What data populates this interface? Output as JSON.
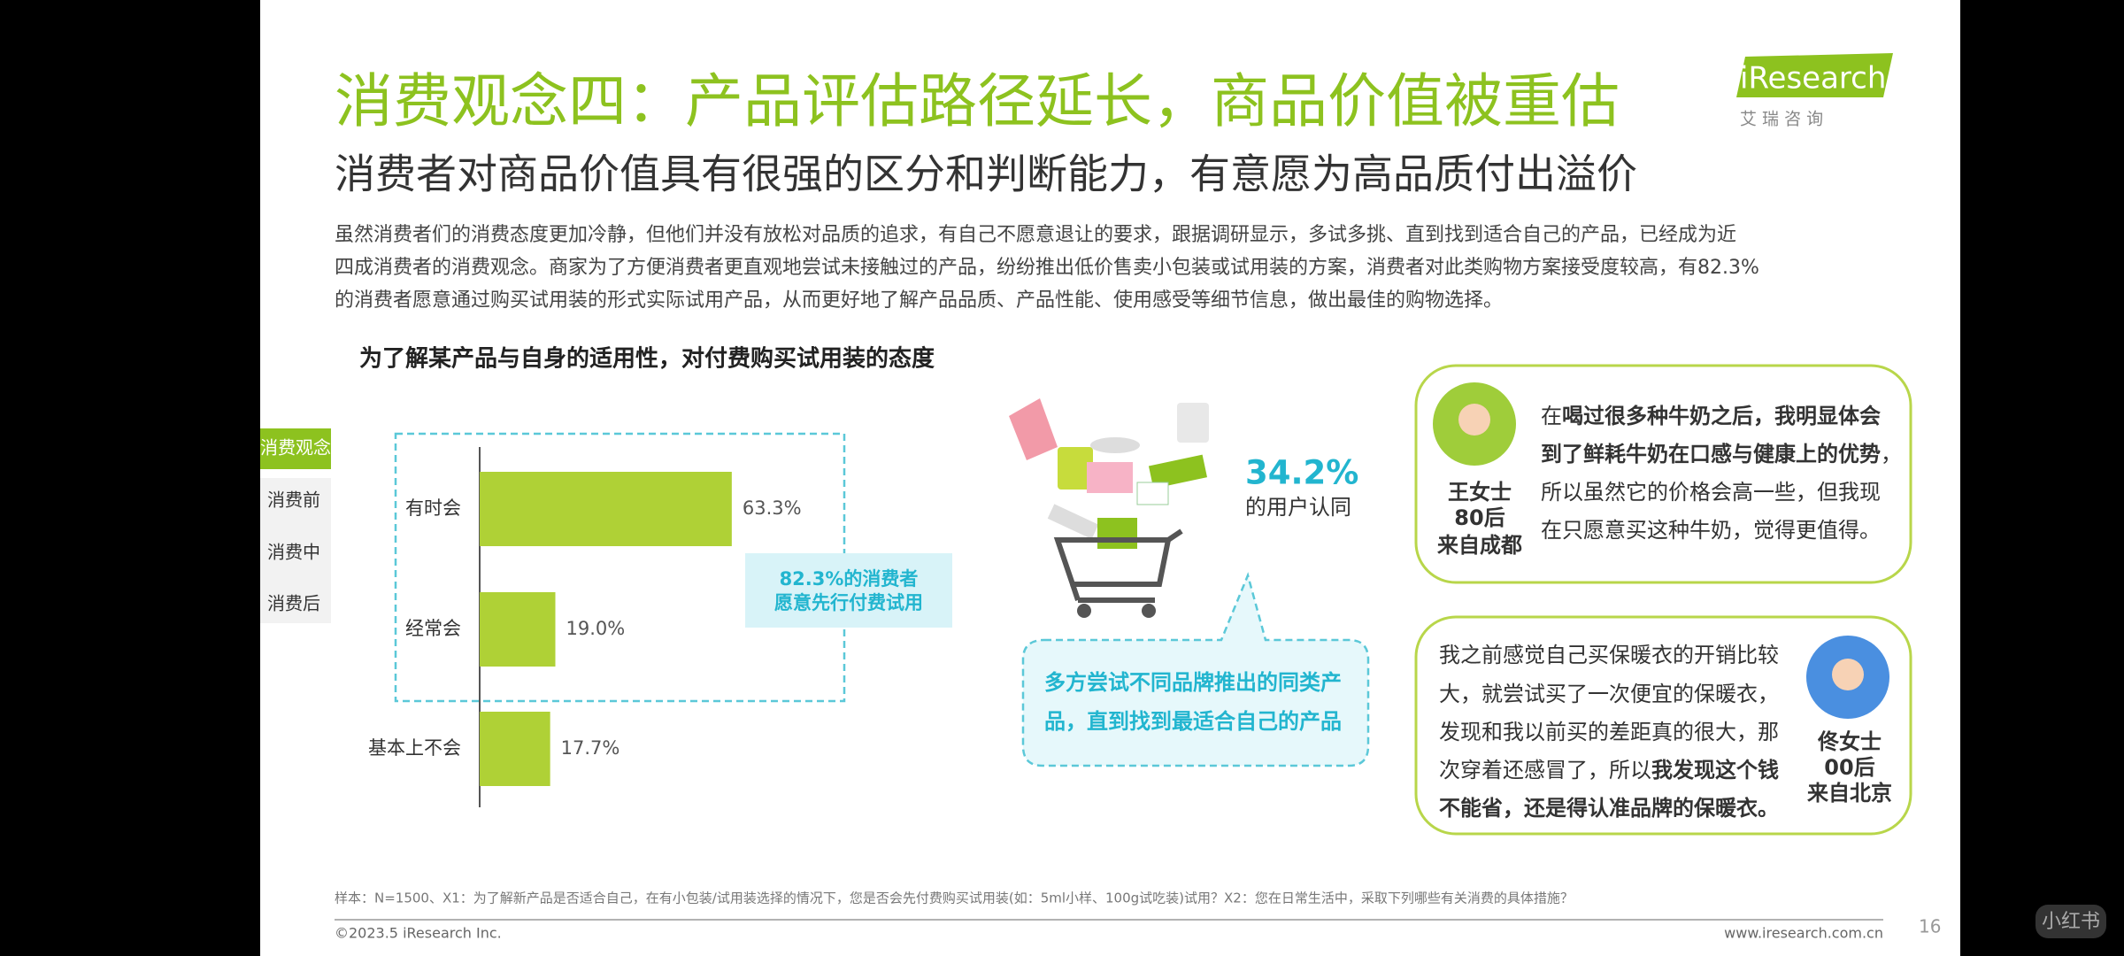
{
  "header": {
    "title": "消费观念四：产品评估路径延长，商品价值被重估",
    "subtitle": "消费者对商品价值具有很强的区分和判断能力，有意愿为高品质付出溢价",
    "logo": "iResearch",
    "logo_sub": "艾 瑞 咨 询"
  },
  "body": [
    "虽然消费者们的消费态度更加冷静，但他们并没有放松对品质的追求，有自己不愿意退让的要求，跟据调研显示，多试多挑、直到找到适合自己的产品，已经成为近",
    "四成消费者的消费观念。商家为了方便消费者更直观地尝试未接触过的产品，纷纷推出低价售卖小包装或试用装的方案，消费者对此类购物方案接受度较高，有82.3%",
    "的消费者愿意通过购买试用装的形式实际试用产品，从而更好地了解产品品质、产品性能、使用感受等细节信息，做出最佳的购物选择。"
  ],
  "nav": [
    "消费观念",
    "消费前",
    "消费中",
    "消费后"
  ],
  "chart_data": {
    "type": "hbar",
    "title": "为了解某产品与自身的适用性，对付费购买试用装的态度",
    "categories": [
      "有时会",
      "经常会",
      "基本上不会"
    ],
    "values": [
      63.3,
      19.0,
      17.7
    ],
    "value_labels": [
      "63.3%",
      "19.0%",
      "17.7%"
    ],
    "color": "#afd136",
    "callout": [
      "82.3%的消费者",
      "愿意先行付费试用"
    ]
  },
  "stat": {
    "value": "34.2%",
    "label": "的用户认同",
    "bubble": [
      "多方尝试不同品牌推出的同类产",
      "品，直到找到最适合自己的产品"
    ]
  },
  "quotes": [
    {
      "person": [
        "王女士",
        "80后",
        "来自成都"
      ],
      "lines": [
        [
          {
            "text": "在",
            "bold": false
          },
          {
            "text": "喝过很多种牛奶之后，我明显体会",
            "bold": true
          }
        ],
        [
          {
            "text": "到了鲜耗牛奶在口感与健康上的优势",
            "bold": true
          },
          {
            "text": "，",
            "bold": false
          }
        ],
        [
          {
            "text": "所以虽然它的价格会高一些，但我现",
            "bold": false
          }
        ],
        [
          {
            "text": "在只愿意买这种牛奶，觉得更值得。",
            "bold": false
          }
        ]
      ]
    },
    {
      "person": [
        "佟女士",
        "00后",
        "来自北京"
      ],
      "lines": [
        [
          {
            "text": "我之前感觉自己买保暖衣的开销比较",
            "bold": false
          }
        ],
        [
          {
            "text": "大，就尝试买了一次便宜的保暖衣，",
            "bold": false
          }
        ],
        [
          {
            "text": "发现和我以前买的差距真的很大，那",
            "bold": false
          }
        ],
        [
          {
            "text": "次穿着还感冒了，所以",
            "bold": false
          },
          {
            "text": "我发现这个钱",
            "bold": true
          }
        ],
        [
          {
            "text": "不能省，还是得认准品牌的保暖衣。",
            "bold": true
          }
        ]
      ]
    }
  ],
  "footer": {
    "note": "样本：N=1500、X1：为了解新产品是否适合自己，在有小包装/试用装选择的情况下，您是否会先付费购买试用装(如：5ml小样、100g试吃装)试用？X2：您在日常生活中，采取下列哪些有关消费的具体措施？",
    "copyright": "©2023.5 iResearch Inc.",
    "url": "www.iresearch.com.cn",
    "page": "16",
    "watermark": "小红书"
  }
}
